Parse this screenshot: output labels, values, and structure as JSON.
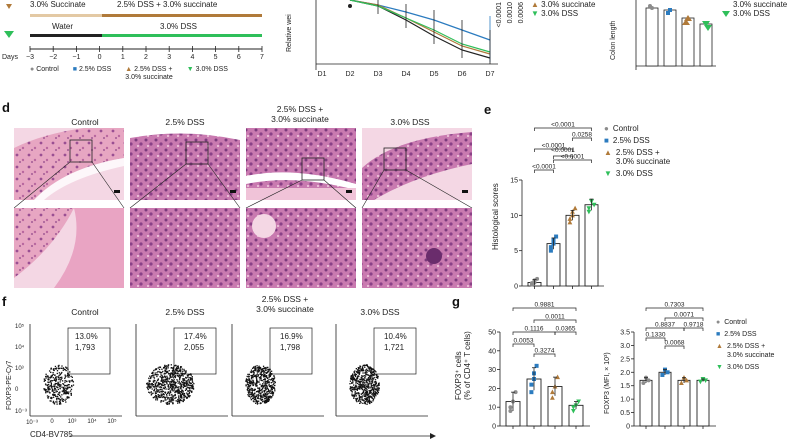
{
  "panel_letters": {
    "d": "d",
    "e": "e",
    "f": "f",
    "g": "g"
  },
  "schedule": {
    "row1_label": "3.0% Succinate",
    "row1_label2": "2.5% DSS + 3.0% succinate",
    "row2_label": "Water",
    "row2_label2": "3.0% DSS",
    "days_label": "Days",
    "days": [
      "−3",
      "−2",
      "−1",
      "0",
      "1",
      "2",
      "3",
      "4",
      "5",
      "6",
      "7"
    ],
    "legend": [
      "Control",
      "2.5% DSS",
      "2.5% DSS +\n3.0% succinate",
      "3.0% DSS"
    ]
  },
  "weight_plot": {
    "ylabel": "Relative wei",
    "days": [
      "D1",
      "D2",
      "D3",
      "D4",
      "D5",
      "D6",
      "D7"
    ],
    "pvalues": [
      "<0.0001",
      "0.0010",
      "0.0006"
    ]
  },
  "colon_plot": {
    "ylabel": "Colon length",
    "legend": [
      "3.0% succinate",
      "3.0% DSS"
    ]
  },
  "top_legend": [
    "3.0% succinate",
    "3.0% DSS"
  ],
  "histology": {
    "headers": [
      "Control",
      "2.5% DSS",
      "2.5% DSS +\n3.0% succinate",
      "3.0% DSS"
    ]
  },
  "colors": {
    "control": "#8c8c8c",
    "dss25": "#2b7bbf",
    "dss_succ": "#b07a3a",
    "dss30": "#2fbf5a",
    "he_pink": "#e59ab8",
    "he_purple": "#a45a9c",
    "he_light": "#f3d6e3"
  },
  "score_plot": {
    "ylabel": "Histological scores",
    "yticks": [
      "0",
      "5",
      "10",
      "15"
    ],
    "pvalues": [
      "<0.0001",
      "0.0258",
      "<0.0001",
      "<0.0001",
      "<0.0001",
      "<0.0001"
    ],
    "legend": [
      "Control",
      "2.5% DSS",
      "2.5% DSS +\n3.0% succinate",
      "3.0% DSS"
    ]
  },
  "chart_data": [
    {
      "type": "bar",
      "title": "",
      "ylabel": "Histological scores",
      "categories": [
        "Control",
        "2.5% DSS",
        "2.5% DSS + 3.0% succinate",
        "3.0% DSS"
      ],
      "values": [
        0.5,
        6,
        10,
        11.5
      ],
      "ylim": [
        0,
        15
      ]
    },
    {
      "type": "bar",
      "title": "",
      "ylabel": "FOXP3+ cells (% of CD4+ T cells)",
      "categories": [
        "Control",
        "2.5% DSS",
        "2.5% DSS + 3.0% succinate",
        "3.0% DSS"
      ],
      "values": [
        13,
        25,
        21,
        11
      ],
      "ylim": [
        0,
        50
      ]
    },
    {
      "type": "bar",
      "title": "",
      "ylabel": "FOXP3 (MFI, × 10³)",
      "categories": [
        "Control",
        "2.5% DSS",
        "2.5% DSS + 3.0% succinate",
        "3.0% DSS"
      ],
      "values": [
        1.7,
        2.0,
        1.7,
        1.7
      ],
      "ylim": [
        0,
        3.5
      ]
    }
  ],
  "flow": {
    "headers": [
      "Control",
      "2.5% DSS",
      "2.5% DSS +\n3.0% succinate",
      "3.0% DSS"
    ],
    "percents": [
      "13.0%",
      "17.4%",
      "16.9%",
      "10.4%"
    ],
    "counts": [
      "1,793",
      "2,055",
      "1,798",
      "1,721"
    ],
    "ylabel": "FOXP3-PE-Cy7",
    "xlabel": "CD4-BV785",
    "xticks": [
      "10⁻³",
      "0",
      "10³",
      "10⁴",
      "10⁵"
    ],
    "yticks": [
      "10⁵",
      "10⁴",
      "10³",
      "0",
      "10⁻³"
    ]
  },
  "foxp3_pct": {
    "ylabel1": "FOXP3⁺ cells",
    "ylabel2": "(% of CD4⁺ T cells)",
    "yticks": [
      "0",
      "10",
      "20",
      "30",
      "40",
      "50"
    ],
    "pvalues": [
      "0.9881",
      "0.0011",
      "0.1116",
      "0.0365",
      "0.0053",
      "0.3274"
    ]
  },
  "foxp3_mfi": {
    "ylabel": "FOXP3 (MFI, × 10³)",
    "yticks": [
      "0",
      "0.5",
      "1.0",
      "1.5",
      "2.0",
      "2.5",
      "3.0",
      "3.5"
    ],
    "pvalues": [
      "0.7303",
      "0.0071",
      "0.8837",
      "0.9718",
      "0.1330",
      "0.0068"
    ],
    "legend": [
      "Control",
      "2.5% DSS",
      "2.5% DSS +\n3.0% succinate",
      "3.0% DSS"
    ]
  }
}
